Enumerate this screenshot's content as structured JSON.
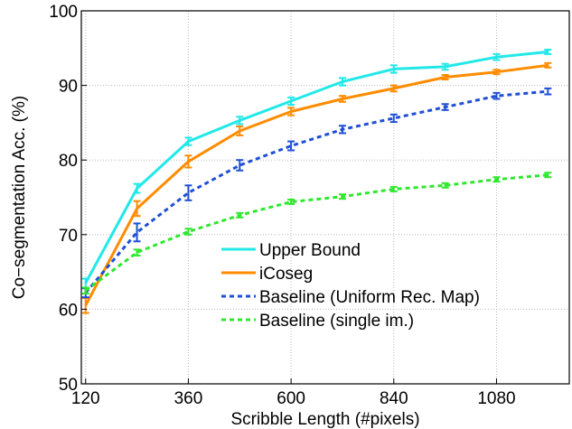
{
  "chart_data": {
    "type": "line",
    "xlabel": "Scribble Length (#pixels)",
    "ylabel": "Co−segmentation Acc. (%)",
    "xlim": [
      110,
      1250
    ],
    "ylim": [
      50,
      100
    ],
    "xticks": [
      120,
      360,
      600,
      840,
      1080
    ],
    "yticks": [
      50,
      60,
      70,
      80,
      90,
      100
    ],
    "grid": true,
    "legend_position": "lower-right",
    "series": [
      {
        "name": "Upper Bound",
        "color": "#22e8e8",
        "dash": "solid",
        "x": [
          120,
          240,
          360,
          480,
          600,
          720,
          840,
          960,
          1080,
          1200
        ],
        "y": [
          63.5,
          76.2,
          82.5,
          85.3,
          87.9,
          90.5,
          92.2,
          92.5,
          93.8,
          94.5
        ],
        "err": [
          0.6,
          0.6,
          0.5,
          0.5,
          0.5,
          0.5,
          0.5,
          0.4,
          0.4,
          0.3
        ]
      },
      {
        "name": "iCoseg",
        "color": "#ff8c00",
        "dash": "solid",
        "x": [
          120,
          240,
          360,
          480,
          600,
          720,
          840,
          960,
          1080,
          1200
        ],
        "y": [
          60.5,
          73.5,
          79.8,
          83.9,
          86.5,
          88.2,
          89.6,
          91.1,
          91.8,
          92.7
        ],
        "err": [
          1.0,
          1.0,
          0.8,
          0.6,
          0.5,
          0.4,
          0.4,
          0.3,
          0.3,
          0.3
        ]
      },
      {
        "name": "Baseline (Uniform Rec. Map)",
        "color": "#1f4fd6",
        "dash": "dash",
        "x": [
          120,
          240,
          360,
          480,
          600,
          720,
          840,
          960,
          1080,
          1200
        ],
        "y": [
          62.2,
          70.3,
          75.6,
          79.3,
          81.9,
          84.1,
          85.6,
          87.1,
          88.6,
          89.2
        ],
        "err": [
          0.6,
          1.2,
          1.0,
          0.7,
          0.6,
          0.5,
          0.5,
          0.4,
          0.4,
          0.4
        ]
      },
      {
        "name": "Baseline (single im.)",
        "color": "#2ee82e",
        "dash": "dash",
        "x": [
          120,
          240,
          360,
          480,
          600,
          720,
          840,
          960,
          1080,
          1200
        ],
        "y": [
          62.5,
          67.6,
          70.4,
          72.6,
          74.4,
          75.1,
          76.1,
          76.6,
          77.4,
          78.0
        ],
        "err": [
          0.4,
          0.4,
          0.4,
          0.3,
          0.3,
          0.3,
          0.3,
          0.3,
          0.3,
          0.3
        ]
      }
    ]
  }
}
